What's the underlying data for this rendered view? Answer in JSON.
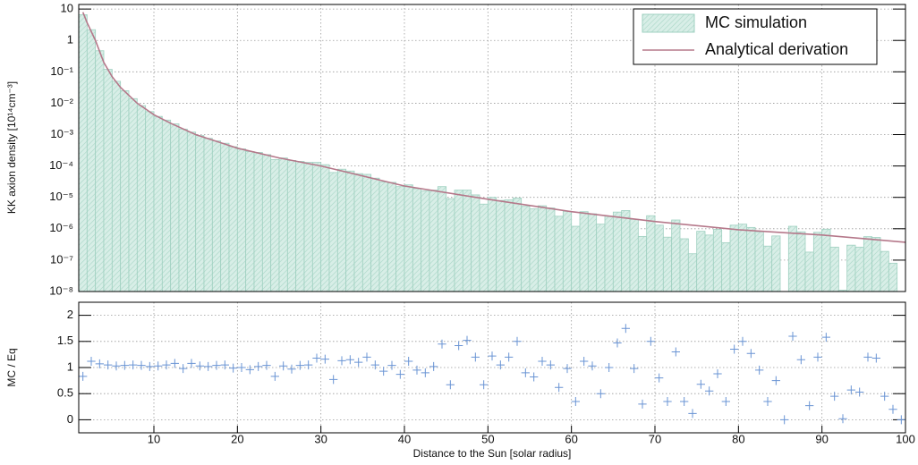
{
  "chart_data": [
    {
      "type": "histogram",
      "ylabel": "KK axion density [10¹⁴cm⁻³]",
      "log_y": true,
      "grid": true,
      "legend": "upper right",
      "xlim": [
        1,
        100
      ],
      "ylim": [
        1e-08,
        14
      ],
      "xticks": [
        10,
        20,
        30,
        40,
        50,
        60,
        70,
        80,
        90,
        100
      ],
      "yticks": [
        {
          "value": 10,
          "label": "10"
        },
        {
          "value": 1,
          "label": "1"
        },
        {
          "value": 0.1,
          "label": "10⁻¹"
        },
        {
          "value": 0.01,
          "label": "10⁻²"
        },
        {
          "value": 0.001,
          "label": "10⁻³"
        },
        {
          "value": 0.0001,
          "label": "10⁻⁴"
        },
        {
          "value": 1e-05,
          "label": "10⁻⁵"
        },
        {
          "value": 1e-06,
          "label": "10⁻⁶"
        },
        {
          "value": 1e-07,
          "label": "10⁻⁷"
        },
        {
          "value": 1e-08,
          "label": "10⁻⁸"
        }
      ],
      "bins": [
        1,
        2,
        3,
        4,
        5,
        6,
        7,
        8,
        9,
        10,
        11,
        12,
        13,
        14,
        15,
        16,
        17,
        18,
        19,
        20,
        21,
        22,
        23,
        24,
        25,
        26,
        27,
        28,
        29,
        30,
        31,
        32,
        33,
        34,
        35,
        36,
        37,
        38,
        39,
        40,
        41,
        42,
        43,
        44,
        45,
        46,
        47,
        48,
        49,
        50,
        51,
        52,
        53,
        54,
        55,
        56,
        57,
        58,
        59,
        60,
        61,
        62,
        63,
        64,
        65,
        66,
        67,
        68,
        69,
        70,
        71,
        72,
        73,
        74,
        75,
        76,
        77,
        78,
        79,
        80,
        81,
        82,
        83,
        84,
        85,
        86,
        87,
        88,
        89,
        90,
        91,
        92,
        93,
        94,
        95,
        96,
        97,
        98,
        99,
        100
      ],
      "series": [
        {
          "name": "MC simulation",
          "color": "#9fd0c0",
          "values": [
            6.6,
            2.2,
            0.47,
            0.12,
            0.05,
            0.025,
            0.014,
            0.0084,
            0.0054,
            0.0038,
            0.0029,
            0.0022,
            0.0015,
            0.0012,
            0.00093,
            0.00076,
            0.00063,
            0.00053,
            0.00041,
            0.00035,
            0.00029,
            0.00027,
            0.00023,
            0.00016,
            0.00018,
            0.00015,
            0.00014,
            0.00013,
            0.00013,
            0.00011,
            6.2e-05,
            7.9e-05,
            6.9e-05,
            5.7e-05,
            5.4e-05,
            4.1e-05,
            3.1e-05,
            3e-05,
            2.2e-05,
            2.5e-05,
            1.9e-05,
            1.6e-05,
            1.7e-05,
            2.2e-05,
            9.1e-06,
            1.7e-05,
            1.7e-05,
            1.2e-05,
            6.1e-06,
            1e-05,
            8e-06,
            8.3e-06,
            9.5e-06,
            5.2e-06,
            4.3e-06,
            5.4e-06,
            4.6e-06,
            2.5e-06,
            3.6e-06,
            1.2e-06,
            3.5e-06,
            3e-06,
            1.4e-06,
            2.5e-06,
            3.4e-06,
            3.8e-06,
            2e-06,
            5.7e-07,
            2.6e-06,
            1.3e-06,
            5.4e-07,
            1.9e-06,
            4.8e-07,
            1.6e-07,
            8.3e-07,
            6.3e-07,
            9.5e-07,
            3.6e-07,
            1.3e-06,
            1.4e-06,
            1.1e-06,
            8e-07,
            2.8e-07,
            5.9e-07,
            0,
            1.2e-06,
            8e-07,
            1.8e-07,
            7.7e-07,
            9.7e-07,
            2.6e-07,
            1.1e-08,
            3e-07,
            2.6e-07,
            5.6e-07,
            5.3e-07,
            1.9e-07,
            8e-08,
            0
          ]
        },
        {
          "name": "Analytical derivation",
          "type": "line",
          "color": "#b5788a",
          "x": [
            1.5,
            2,
            3,
            4,
            5,
            6,
            8,
            10,
            12,
            15,
            20,
            25,
            30,
            40,
            50,
            60,
            70,
            80,
            90,
            100
          ],
          "values": [
            7.9,
            3.7,
            1,
            0.2,
            0.07,
            0.032,
            0.01,
            0.0043,
            0.0023,
            0.001,
            0.00037,
            0.00018,
            0.0001,
            2.3e-05,
            8.7e-06,
            3.5e-06,
            1.7e-06,
            9.3e-07,
            6.3e-07,
            3.7e-07
          ]
        }
      ]
    },
    {
      "type": "scatter",
      "ylabel": "MC / Eq",
      "xlabel": "Distance to the Sun [solar radius]",
      "grid": true,
      "color": "#6a94d4",
      "xlim": [
        1,
        100
      ],
      "ylim": [
        -0.25,
        2.25
      ],
      "xticks": [
        10,
        20,
        30,
        40,
        50,
        60,
        70,
        80,
        90,
        100
      ],
      "yticks": [
        0,
        0.5,
        1,
        1.5,
        2
      ],
      "x": [
        1.5,
        2.5,
        3.5,
        4.5,
        5.5,
        6.5,
        7.5,
        8.5,
        9.5,
        10.5,
        11.5,
        12.5,
        13.5,
        14.5,
        15.5,
        16.5,
        17.5,
        18.5,
        19.5,
        20.5,
        21.5,
        22.5,
        23.5,
        24.5,
        25.5,
        26.5,
        27.5,
        28.5,
        29.5,
        30.5,
        31.5,
        32.5,
        33.5,
        34.5,
        35.5,
        36.5,
        37.5,
        38.5,
        39.5,
        40.5,
        41.5,
        42.5,
        43.5,
        44.5,
        45.5,
        46.5,
        47.5,
        48.5,
        49.5,
        50.5,
        51.5,
        52.5,
        53.5,
        54.5,
        55.5,
        56.5,
        57.5,
        58.5,
        59.5,
        60.5,
        61.5,
        62.5,
        63.5,
        64.5,
        65.5,
        66.5,
        67.5,
        68.5,
        69.5,
        70.5,
        71.5,
        72.5,
        73.5,
        74.5,
        75.5,
        76.5,
        77.5,
        78.5,
        79.5,
        80.5,
        81.5,
        82.5,
        83.5,
        84.5,
        85.5,
        86.5,
        87.5,
        88.5,
        89.5,
        90.5,
        91.5,
        92.5,
        93.5,
        94.5,
        95.5,
        96.5,
        97.5,
        98.5,
        99.5
      ],
      "values": [
        0.83,
        1.12,
        1.07,
        1.05,
        1.03,
        1.04,
        1.05,
        1.04,
        1.02,
        1.03,
        1.05,
        1.08,
        0.98,
        1.08,
        1.03,
        1.02,
        1.04,
        1.05,
        0.99,
        1.0,
        0.96,
        1.02,
        1.04,
        0.83,
        1.03,
        0.97,
        1.04,
        1.05,
        1.18,
        1.16,
        0.77,
        1.13,
        1.15,
        1.1,
        1.2,
        1.05,
        0.93,
        1.04,
        0.87,
        1.12,
        0.95,
        0.9,
        1.02,
        1.45,
        0.67,
        1.42,
        1.52,
        1.2,
        0.67,
        1.22,
        1.05,
        1.2,
        1.5,
        0.9,
        0.82,
        1.12,
        1.05,
        0.62,
        0.98,
        0.35,
        1.12,
        1.03,
        0.5,
        1.0,
        1.47,
        1.75,
        0.98,
        0.3,
        1.5,
        0.8,
        0.35,
        1.3,
        0.35,
        0.12,
        0.68,
        0.55,
        0.88,
        0.35,
        1.35,
        1.5,
        1.27,
        0.95,
        0.35,
        0.75,
        0,
        1.6,
        1.15,
        0.27,
        1.2,
        1.58,
        0.45,
        0.02,
        0.57,
        0.53,
        1.2,
        1.18,
        0.45,
        0.2,
        0
      ]
    }
  ]
}
